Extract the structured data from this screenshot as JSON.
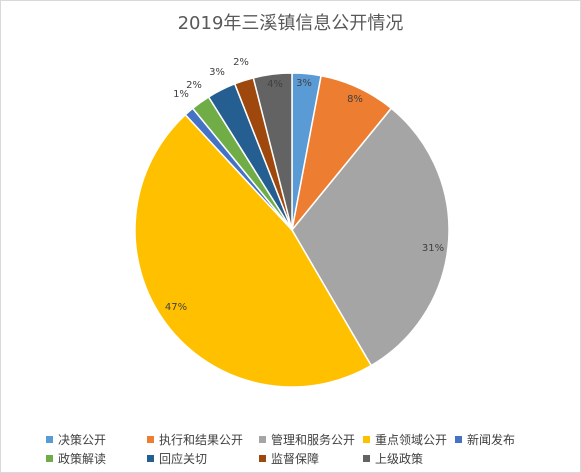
{
  "chart_data": {
    "type": "pie",
    "title": "2019年三溪镇信息公开情况",
    "categories": [
      "决策公开",
      "执行和结果公开",
      "管理和服务公开",
      "重点领域公开",
      "新闻发布",
      "政策解读",
      "回应关切",
      "监督保障",
      "上级政策"
    ],
    "values": [
      3,
      8,
      31,
      47,
      1,
      2,
      3,
      2,
      4
    ],
    "value_labels": [
      "3%",
      "8%",
      "31%",
      "47%",
      "1%",
      "2%",
      "3%",
      "2%",
      "4%"
    ],
    "colors": [
      "#5B9BD5",
      "#ED7D31",
      "#A5A5A5",
      "#FFC000",
      "#4472C4",
      "#70AD47",
      "#255E91",
      "#9E480E",
      "#636363"
    ],
    "legend_placement": "bottom"
  }
}
